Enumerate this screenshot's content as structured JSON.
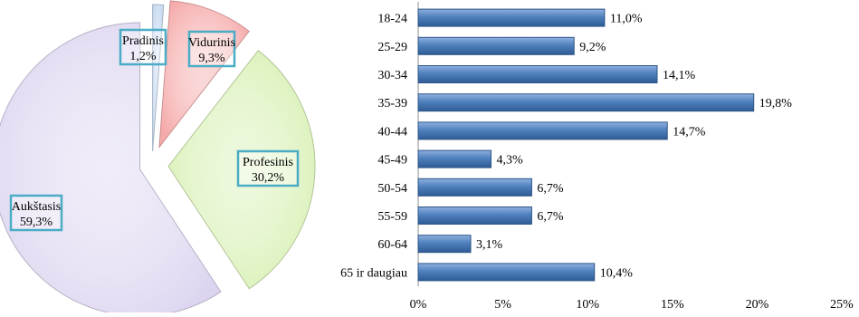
{
  "chart_data": [
    {
      "type": "pie",
      "categories": [
        "Pradinis",
        "Vidurinis",
        "Profesinis",
        "Aukštasis"
      ],
      "values": [
        1.2,
        9.3,
        30.2,
        59.3
      ],
      "labels": [
        "1,2%",
        "9,3%",
        "30,2%",
        "59,3%"
      ],
      "exploded": true,
      "colors": {
        "Pradinis": "#c6d9f1",
        "Vidurinis": "#f5a9a9",
        "Profesinis": "#d7f0b3",
        "Aukštasis": "#ddd5f0",
        "label_border": "#4bacc6"
      }
    },
    {
      "type": "bar",
      "orientation": "horizontal",
      "categories": [
        "18-24",
        "25-29",
        "30-34",
        "35-39",
        "40-44",
        "45-49",
        "50-54",
        "55-59",
        "60-64",
        "65 ir daugiau"
      ],
      "values": [
        11.0,
        9.2,
        14.1,
        19.8,
        14.7,
        4.3,
        6.7,
        6.7,
        3.1,
        10.4
      ],
      "labels": [
        "11,0%",
        "9,2%",
        "14,1%",
        "19,8%",
        "14,7%",
        "4,3%",
        "6,7%",
        "6,7%",
        "3,1%",
        "10,4%"
      ],
      "xlim": [
        0,
        25
      ],
      "xticks": [
        "0%",
        "5%",
        "10%",
        "15%",
        "20%",
        "25%"
      ],
      "grid": false,
      "colors": {
        "bar": "#4f81bd",
        "bar_light": "#8fb0e0",
        "bar_dark": "#2f5b95"
      }
    }
  ]
}
